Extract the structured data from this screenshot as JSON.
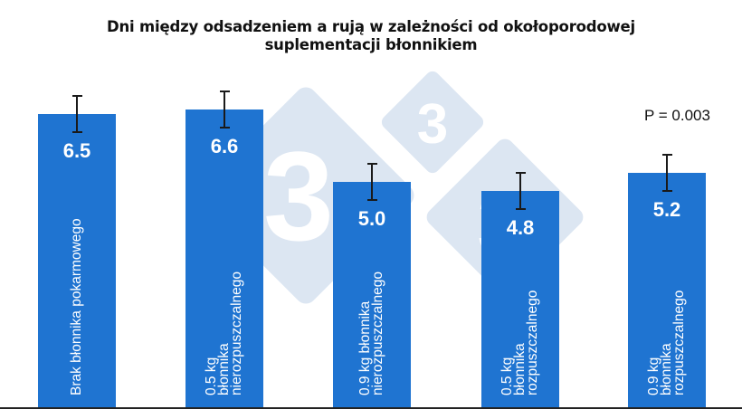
{
  "title_line1": "Dni między odsadzeniem a rują w zależności od okołoporodowej",
  "title_line2": "suplementacji błonnikiem",
  "annotation": "P = 0.003",
  "colors": {
    "bar": "#1f74d1",
    "watermark": "#dce6f2",
    "axis": "#222222",
    "error_bar": "#1a1a1a"
  },
  "watermark": {
    "icon": "logo-333-diamonds-icon",
    "glyph": "3"
  },
  "chart_data": {
    "type": "bar",
    "title": "Dni między odsadzeniem a rują w zależności od okołoporodowej suplementacji błonnikiem",
    "xlabel": "",
    "ylabel": "",
    "categories": [
      "Brak błonnika pokarmowego",
      "0.5 kg błonnika nierozpuszczalnego",
      "0.9 kg błonnika nierozpuszczalnego",
      "0.5 kg błonnika rozpuszczalnego",
      "0.9 kg błonnika rozpuszczalnego"
    ],
    "values": [
      6.5,
      6.6,
      5.0,
      4.8,
      5.2
    ],
    "error": [
      0.4,
      0.4,
      0.4,
      0.4,
      0.4
    ],
    "value_labels": [
      "6.5",
      "6.6",
      "5.0",
      "4.8",
      "5.2"
    ],
    "annotations": [
      "P = 0.003"
    ],
    "axes_visible": false,
    "grid": false,
    "legend": null,
    "ylim": [
      0,
      7
    ]
  },
  "bars": [
    {
      "label": "Brak błonnika pokarmowego",
      "value": "6.5"
    },
    {
      "label": "0.5 kg\nbłonnika\nnierozpuszczalnego",
      "value": "6.6"
    },
    {
      "label": "0.9 kg błonnika\nnierozpuszczalnego",
      "value": "5.0"
    },
    {
      "label": "0.5 kg\nbłonnika\nrozpuszczalnego",
      "value": "4.8"
    },
    {
      "label": "0.9 kg\nbłonnika\nrozpuszczalnego",
      "value": "5.2"
    }
  ]
}
